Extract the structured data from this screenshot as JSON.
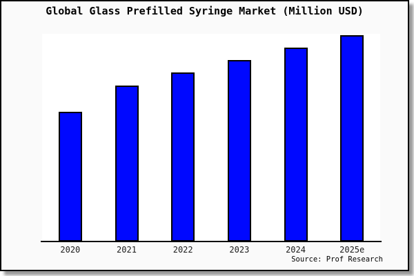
{
  "colors": {
    "bar_fill": "#0008ff",
    "bar_border": "#000000",
    "frame_background": "#fafafa",
    "plot_background": "#ffffff",
    "axis": "#000000",
    "text": "#000000"
  },
  "chart_data": {
    "type": "bar",
    "title": "Global Glass Prefilled Syringe Market (Million USD)",
    "categories": [
      "2020",
      "2021",
      "2022",
      "2023",
      "2024",
      "2025e"
    ],
    "values": [
      62.9,
      75.6,
      81.9,
      88.0,
      94.0,
      100.0
    ],
    "value_unit": "relative index estimated from bar heights (no y-axis labels shown; 2025e = 100)",
    "xlabel": "",
    "ylabel": "",
    "ylim": [
      0,
      100
    ],
    "grid": false,
    "legend": false,
    "source": "Source: Prof Research"
  }
}
